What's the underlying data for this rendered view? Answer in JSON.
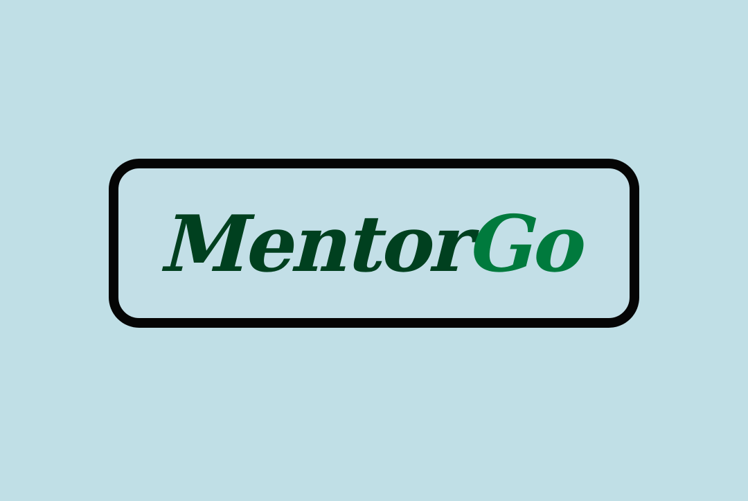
{
  "logo": {
    "primary_text": "Mentor",
    "accent_text": "Go",
    "colors": {
      "background": "#c0dfe6",
      "frame_border": "#050505",
      "frame_fill": "#c3dfe7",
      "primary_text": "#00401f",
      "accent_text": "#007a3d"
    }
  }
}
